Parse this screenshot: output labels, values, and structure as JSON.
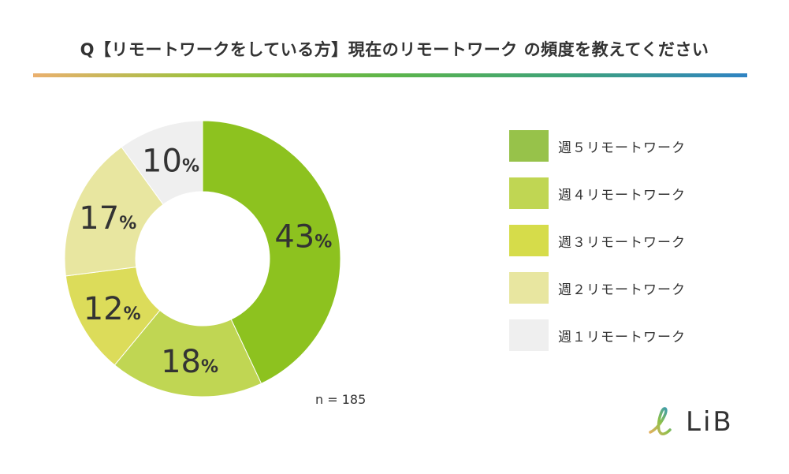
{
  "title": "Q【リモートワークをしている方】現在のリモートワーク の頻度を教えてください",
  "chart_data": {
    "type": "pie",
    "variant": "donut",
    "title": "Q【リモートワークをしている方】現在のリモートワーク の頻度を教えてください",
    "categories": [
      "週５リモートワーク",
      "週４リモートワーク",
      "週３リモートワーク",
      "週２リモートワーク",
      "週１リモートワーク"
    ],
    "values": [
      43,
      18,
      12,
      17,
      10
    ],
    "labels": [
      "43",
      "18",
      "12",
      "17",
      "10"
    ],
    "unit": "%",
    "colors": [
      "#8dc21f",
      "#c0d653",
      "#dcdc5a",
      "#e8e6a0",
      "#efefef"
    ],
    "legend_colors": [
      "#97c24a",
      "#c0d653",
      "#d6dc4a",
      "#e8e6a0",
      "#efefef"
    ],
    "legend_position": "right",
    "sample": "n = 185"
  },
  "logo": {
    "text": "LiB",
    "mark": "ℓ"
  }
}
